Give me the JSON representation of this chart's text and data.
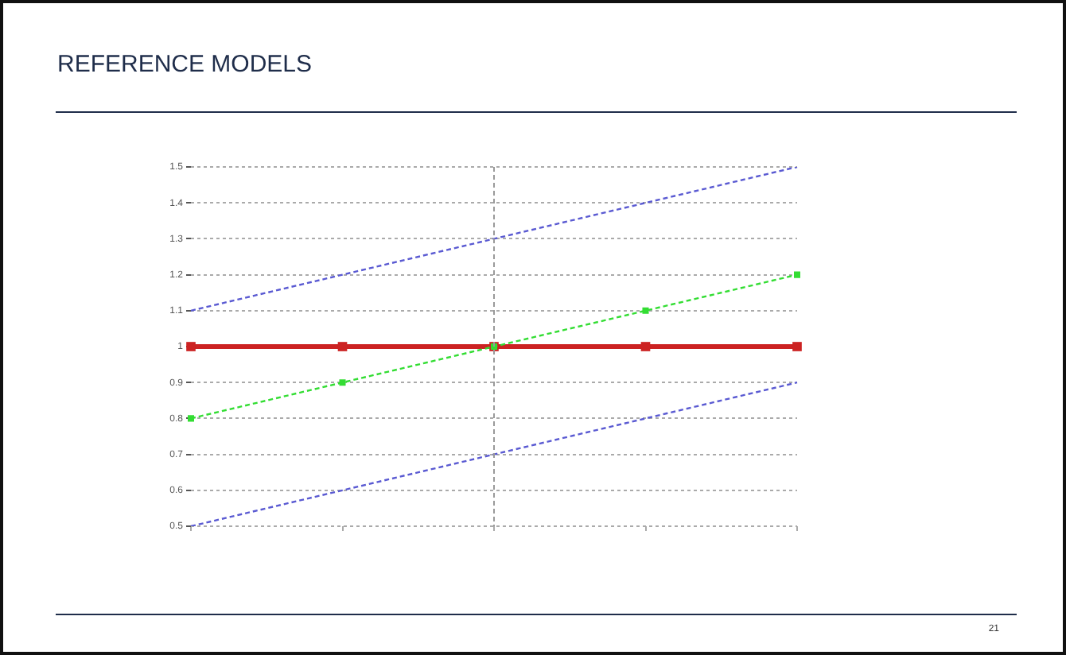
{
  "chart_data": {
    "type": "line",
    "title": "REFERENCE MODELS",
    "categories": [
      null,
      null,
      null,
      null,
      null
    ],
    "ylim": [
      0.5,
      1.5
    ],
    "yticks": [
      0.5,
      0.6,
      0.7,
      0.8,
      0.9,
      1,
      1.1,
      1.2,
      1.3,
      1.4,
      1.5
    ],
    "series": [
      {
        "color": "#5a5ad2",
        "values": [
          1.1,
          1.2,
          1.3,
          1.4,
          1.5
        ],
        "line_style": "dashed",
        "marker": "none"
      },
      {
        "color": "#33dd33",
        "values": [
          0.8,
          0.9,
          1,
          1.1,
          1.2
        ],
        "line_style": "dashed",
        "marker": "square"
      },
      {
        "color": "#cc2222",
        "values": [
          1,
          1,
          1,
          1,
          1
        ],
        "line_style": "solid",
        "marker": "square"
      },
      {
        "color": "#5a5ad2",
        "values": [
          0.5,
          0.6,
          0.7,
          0.8,
          0.9
        ],
        "line_style": "dashed",
        "marker": "none"
      }
    ],
    "grid": "y",
    "legend": false,
    "tick_labels": "y",
    "ref_lines": [
      {
        "axis": "x",
        "line_style": "dashed",
        "color": "#999999"
      }
    ],
    "annotations": [
      "21"
    ]
  }
}
